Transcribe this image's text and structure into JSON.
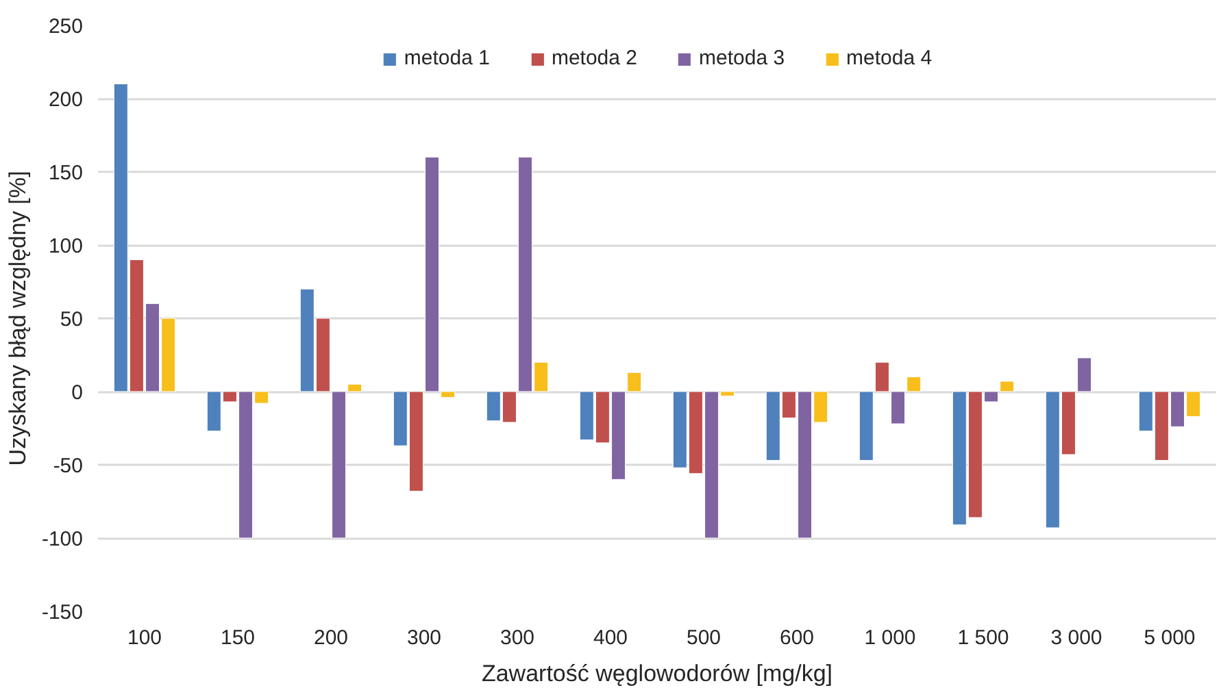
{
  "chart_data": {
    "type": "bar",
    "xlabel": "Zawartość węglowodorów [mg/kg]",
    "ylabel": "Uzyskany błąd względny [%]",
    "categories": [
      "100",
      "150",
      "200",
      "300",
      "300",
      "400",
      "500",
      "600",
      "1 000",
      "1 500",
      "3 000",
      "5 000"
    ],
    "series": [
      {
        "name": "metoda 1",
        "color": "#4f81bd",
        "values": [
          210,
          -27,
          70,
          -37,
          -20,
          -33,
          -52,
          -47,
          -47,
          -91,
          -93,
          -27
        ]
      },
      {
        "name": "metoda 2",
        "color": "#c0504d",
        "values": [
          90,
          -7,
          50,
          -68,
          -21,
          -35,
          -56,
          -18,
          20,
          -86,
          -43,
          -47
        ]
      },
      {
        "name": "metoda 3",
        "color": "#8064a2",
        "values": [
          60,
          -100,
          -100,
          160,
          160,
          -60,
          -100,
          -100,
          -22,
          -7,
          23,
          -24
        ]
      },
      {
        "name": "metoda 4",
        "color": "#f7be1c",
        "values": [
          50,
          -8,
          5,
          -4,
          20,
          13,
          -3,
          -21,
          10,
          7,
          null,
          -17
        ]
      }
    ],
    "ylim": [
      -150,
      250
    ],
    "yticks": [
      -150,
      -100,
      -50,
      0,
      50,
      100,
      150,
      200,
      250
    ],
    "grid": "y",
    "legend": "top"
  }
}
